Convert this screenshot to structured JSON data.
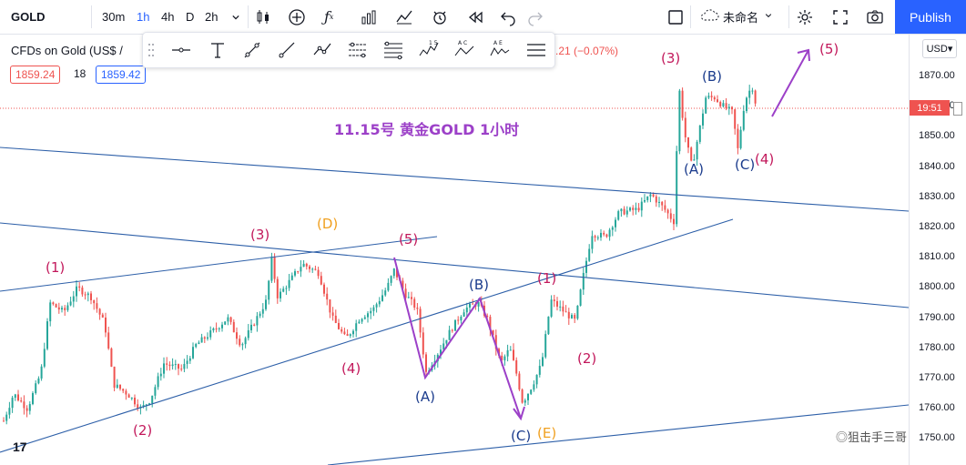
{
  "toolbar": {
    "symbol": "GOLD",
    "intervals": [
      "30m",
      "1h",
      "4h",
      "D",
      "2h"
    ],
    "active_interval": "1h",
    "layout_name": "未命名",
    "publish_label": "Publish"
  },
  "legend": {
    "title": "CFDs on Gold (US$ /",
    "bid": "1859.24",
    "spread": "18",
    "ask": "1859.42",
    "change": ".21 (−0.07%)"
  },
  "drawing_tools": [
    "cursor-line",
    "text",
    "trend-line",
    "ray",
    "path",
    "parallel",
    "fib",
    "1-5",
    "ABC",
    "AE",
    "lines"
  ],
  "axis": {
    "currency": "USD",
    "ticks": [
      "1870.00",
      "1860.00",
      "1850.00",
      "1840.00",
      "1830.00",
      "1820.00",
      "1810.00",
      "1800.00",
      "1790.00",
      "1780.00",
      "1770.00",
      "1760.00",
      "1750.00"
    ],
    "current_price_label": "19:51"
  },
  "annotation": {
    "title": "11.15号  黄金GOLD 1小时"
  },
  "wave_labels": {
    "l1": "(1)",
    "l2": "(2)",
    "l3": "(3)",
    "l4": "(4)",
    "l5": "(5)",
    "D": "(D)",
    "A": "(A)",
    "B": "(B)",
    "C": "(C)",
    "E": "(E)",
    "r1": "(1)",
    "r2": "(2)",
    "r3": "(3)",
    "rA": "(A)",
    "rB": "(B)",
    "rC": "(C)",
    "r4": "(4)",
    "r5": "(5)"
  },
  "watermark": "◎狙击手三哥",
  "colors": {
    "accent": "#2962ff",
    "up": "#26a69a",
    "down": "#ef5350",
    "wave_red": "#c2185b",
    "wave_blue": "#1a3b8c",
    "wave_orange": "#f0a020",
    "arrow_purple": "#9c40c8",
    "trend_blue": "#2d5fa8"
  }
}
